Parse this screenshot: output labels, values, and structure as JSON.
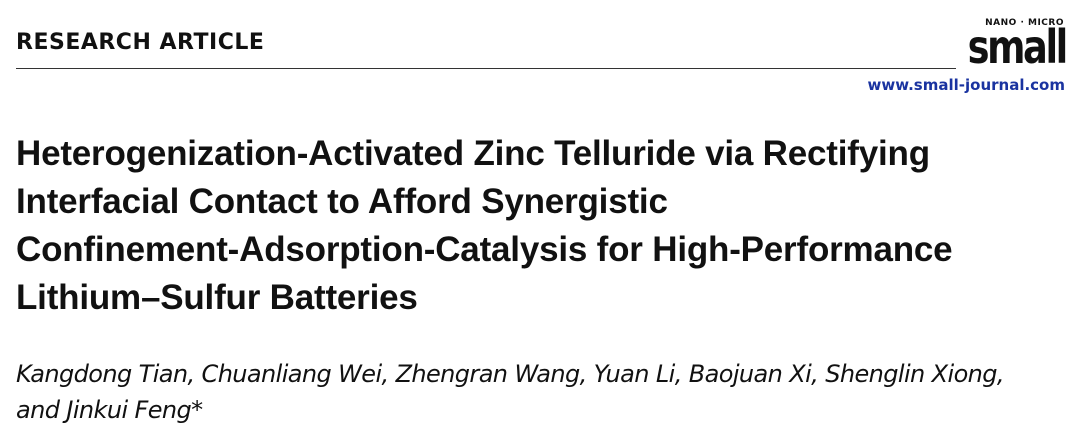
{
  "header": {
    "section": "RESEARCH ARTICLE",
    "journal_tag": "NANO · MICRO",
    "journal": "small",
    "url": "www.small-journal.com"
  },
  "article": {
    "title_lines": [
      "Heterogenization-Activated Zinc Telluride via Rectifying",
      "Interfacial Contact to Afford Synergistic",
      "Confinement-Adsorption-Catalysis for High-Performance",
      "Lithium–Sulfur Batteries"
    ],
    "author_lines": [
      "Kangdong Tian, Chuanliang Wei, Zhengran Wang, Yuan Li, Baojuan Xi, Shenglin Xiong,",
      "and Jinkui Feng*"
    ]
  }
}
